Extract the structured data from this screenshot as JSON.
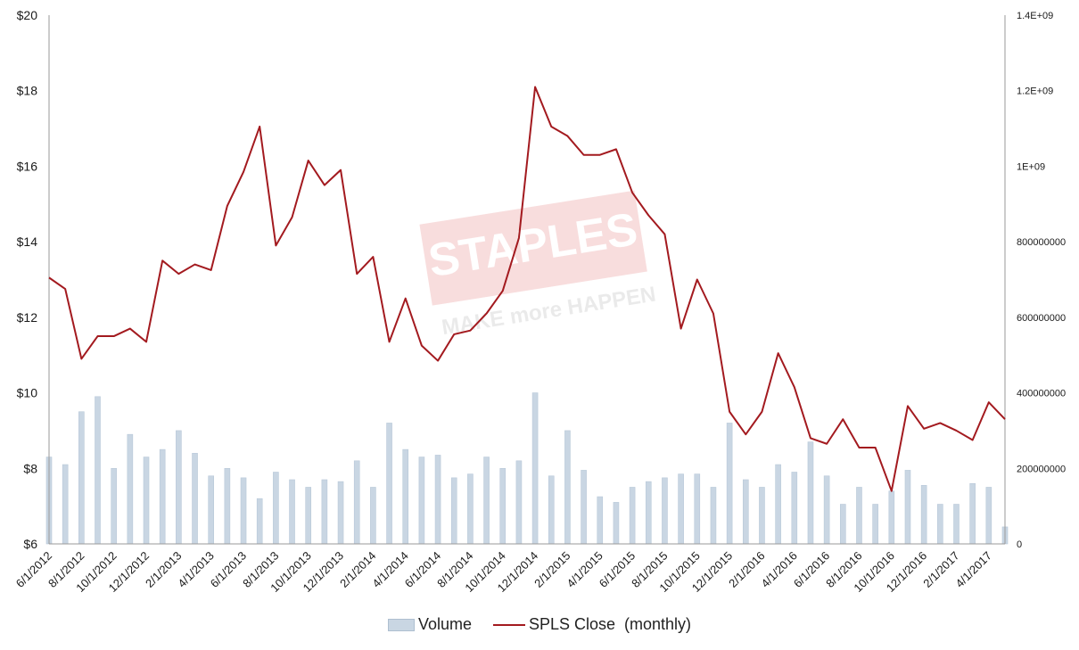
{
  "chart_data": {
    "type": "bar+line",
    "categories": [
      "6/1/2012",
      "7/1/2012",
      "8/1/2012",
      "9/1/2012",
      "10/1/2012",
      "11/1/2012",
      "12/1/2012",
      "1/1/2013",
      "2/1/2013",
      "3/1/2013",
      "4/1/2013",
      "5/1/2013",
      "6/1/2013",
      "7/1/2013",
      "8/1/2013",
      "9/1/2013",
      "10/1/2013",
      "11/1/2013",
      "12/1/2013",
      "1/1/2014",
      "2/1/2014",
      "3/1/2014",
      "4/1/2014",
      "5/1/2014",
      "6/1/2014",
      "7/1/2014",
      "8/1/2014",
      "9/1/2014",
      "10/1/2014",
      "11/1/2014",
      "12/1/2014",
      "1/1/2015",
      "2/1/2015",
      "3/1/2015",
      "4/1/2015",
      "5/1/2015",
      "6/1/2015",
      "7/1/2015",
      "8/1/2015",
      "9/1/2015",
      "10/1/2015",
      "11/1/2015",
      "12/1/2015",
      "1/1/2016",
      "2/1/2016",
      "3/1/2016",
      "4/1/2016",
      "5/1/2016",
      "6/1/2016",
      "7/1/2016",
      "8/1/2016",
      "9/1/2016",
      "10/1/2016",
      "11/1/2016",
      "12/1/2016",
      "1/1/2017",
      "2/1/2017",
      "3/1/2017",
      "4/1/2017",
      "5/1/2017"
    ],
    "x_tick_labels": [
      "6/1/2012",
      "8/1/2012",
      "10/1/2012",
      "12/1/2012",
      "2/1/2013",
      "4/1/2013",
      "6/1/2013",
      "8/1/2013",
      "10/1/2013",
      "12/1/2013",
      "2/1/2014",
      "4/1/2014",
      "6/1/2014",
      "8/1/2014",
      "10/1/2014",
      "12/1/2014",
      "2/1/2015",
      "4/1/2015",
      "6/1/2015",
      "8/1/2015",
      "10/1/2015",
      "12/1/2015",
      "2/1/2016",
      "4/1/2016",
      "6/1/2016",
      "8/1/2016",
      "10/1/2016",
      "12/1/2016",
      "2/1/2017",
      "4/1/2017"
    ],
    "series": [
      {
        "name": "Volume",
        "kind": "bar",
        "axis": "right",
        "color": "#c9d6e3",
        "values": [
          230000000,
          210000000,
          350000000,
          390000000,
          200000000,
          290000000,
          230000000,
          250000000,
          300000000,
          240000000,
          180000000,
          200000000,
          175000000,
          120000000,
          190000000,
          170000000,
          150000000,
          170000000,
          165000000,
          220000000,
          150000000,
          320000000,
          250000000,
          230000000,
          235000000,
          175000000,
          185000000,
          230000000,
          200000000,
          220000000,
          400000000,
          180000000,
          300000000,
          195000000,
          125000000,
          110000000,
          150000000,
          165000000,
          175000000,
          185000000,
          185000000,
          150000000,
          320000000,
          170000000,
          150000000,
          210000000,
          190000000,
          270000000,
          180000000,
          105000000,
          150000000,
          105000000,
          140000000,
          195000000,
          155000000,
          105000000,
          105000000,
          160000000,
          150000000,
          45000000
        ]
      },
      {
        "name": "SPLS Close  (monthly)",
        "kind": "line",
        "axis": "left",
        "color": "#a31a1f",
        "values": [
          13.05,
          12.75,
          10.9,
          11.5,
          11.5,
          11.7,
          11.35,
          13.5,
          13.15,
          13.4,
          13.25,
          14.95,
          15.85,
          17.05,
          13.9,
          14.65,
          16.15,
          15.5,
          15.9,
          13.15,
          13.6,
          11.35,
          12.5,
          11.25,
          10.85,
          11.55,
          11.65,
          12.1,
          12.7,
          14.1,
          18.1,
          17.05,
          16.8,
          16.3,
          16.3,
          16.45,
          15.3,
          14.7,
          14.2,
          11.7,
          13.0,
          12.1,
          9.5,
          8.9,
          9.5,
          11.05,
          10.15,
          8.8,
          8.65,
          9.3,
          8.55,
          8.55,
          7.4,
          9.65,
          9.05,
          9.2,
          9.0,
          8.75,
          9.75,
          9.3
        ]
      }
    ],
    "y_left": {
      "ticks": [
        "$6",
        "$8",
        "$10",
        "$12",
        "$14",
        "$16",
        "$18",
        "$20"
      ],
      "lim": [
        6,
        20
      ]
    },
    "y_right": {
      "ticks": [
        "0",
        "200000000",
        "400000000",
        "600000000",
        "800000000",
        "1E+09",
        "1.2E+09",
        "1.4E+09"
      ],
      "lim": [
        0,
        1400000000
      ]
    },
    "grid": false,
    "legend": {
      "position": "bottom",
      "entries": [
        "Volume",
        "SPLS Close  (monthly)"
      ]
    },
    "watermark": {
      "brand": "STAPLES",
      "tagline": "MAKE more HAPPEN"
    }
  }
}
